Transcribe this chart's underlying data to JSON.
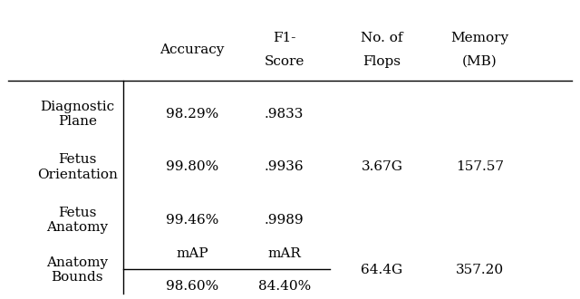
{
  "col_headers_line1": [
    "Accuracy",
    "F1-",
    "No. of",
    "Memory"
  ],
  "col_headers_line2": [
    "",
    "Score",
    "Flops",
    "(MB)"
  ],
  "row_labels": [
    "Diagnostic\nPlane",
    "Fetus\nOrientation",
    "Fetus\nAnatomy",
    "Anatomy\nBounds"
  ],
  "row_data": [
    [
      "98.29%",
      ".9833",
      "",
      ""
    ],
    [
      "99.80%",
      ".9936",
      "3.67G",
      "157.57"
    ],
    [
      "99.46%",
      ".9989",
      "",
      ""
    ],
    [
      "",
      "",
      "64.4G",
      "357.20"
    ]
  ],
  "anatomy_bounds_labels": [
    "mAP",
    "mAR"
  ],
  "anatomy_bounds_values": [
    "98.60%",
    "84.40%"
  ],
  "bg_color": "#ffffff",
  "text_color": "#000000",
  "font_size": 11
}
